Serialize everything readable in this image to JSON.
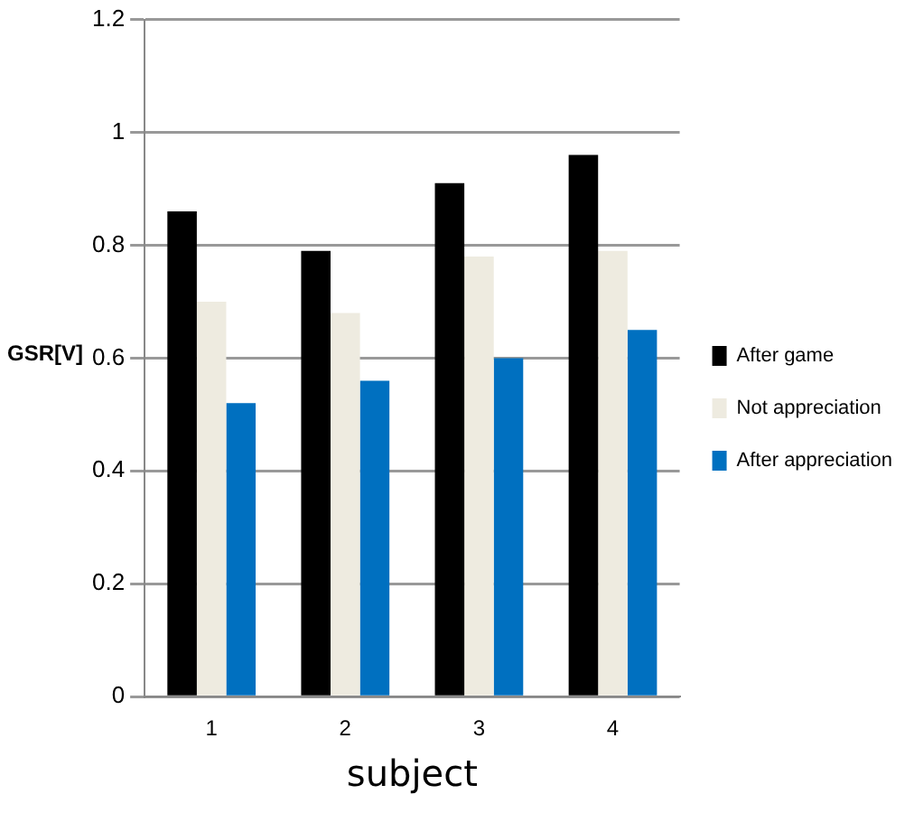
{
  "chart_data": {
    "type": "bar",
    "xlabel": "subject",
    "ylabel": "GSR[V]",
    "categories": [
      "1",
      "2",
      "3",
      "4"
    ],
    "series": [
      {
        "name": "After game",
        "color": "#000000",
        "values": [
          0.86,
          0.79,
          0.91,
          0.96
        ]
      },
      {
        "name": "Not appreciation",
        "color": "#eeebe0",
        "values": [
          0.7,
          0.68,
          0.78,
          0.79
        ]
      },
      {
        "name": "After appreciation",
        "color": "#0070c0",
        "values": [
          0.52,
          0.56,
          0.6,
          0.65
        ]
      }
    ],
    "ylim": [
      0,
      1.2
    ],
    "yticks": [
      0,
      0.2,
      0.4,
      0.6,
      0.8,
      {
        "value": 1,
        "label": "1"
      },
      1.2
    ],
    "grid": "y",
    "legend": "right"
  }
}
